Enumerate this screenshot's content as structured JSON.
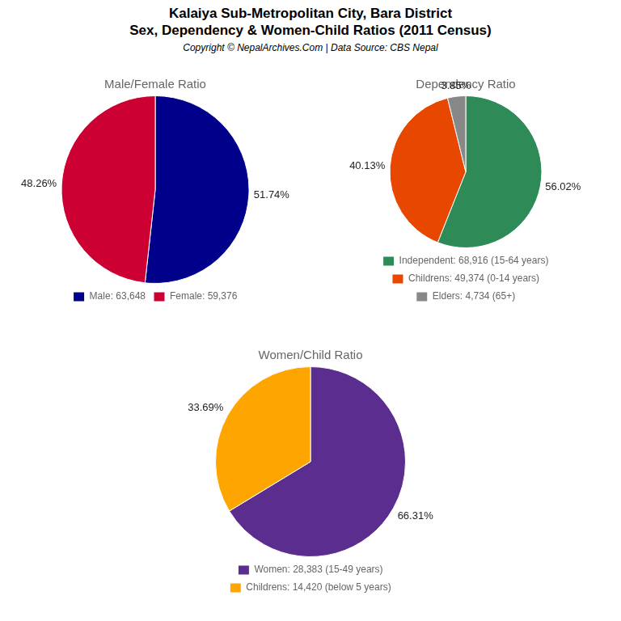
{
  "title": "Kalaiya Sub-Metropolitan City, Bara District",
  "subtitle": "Sex, Dependency & Women-Child Ratios (2011 Census)",
  "annotations": [
    "Copyright © NepalArchives.Com | Data Source: CBS Nepal"
  ],
  "chart_data": [
    {
      "type": "pie",
      "title": "Male/Female Ratio",
      "categories": [
        "Male: 63,648",
        "Female: 59,376"
      ],
      "values": [
        51.74,
        48.26
      ],
      "value_labels": [
        "51.74%",
        "48.26%"
      ],
      "colors": [
        "#00008B",
        "#CC0033"
      ],
      "data_labels": true,
      "legend": "bottom"
    },
    {
      "type": "pie",
      "title": "Dependency Ratio",
      "categories": [
        "Independent: 68,916 (15-64 years)",
        "Childrens: 49,374 (0-14 years)",
        "Elders: 4,734 (65+)"
      ],
      "values": [
        56.02,
        40.13,
        3.85
      ],
      "value_labels": [
        "56.02%",
        "40.13%",
        "3.85%"
      ],
      "colors": [
        "#2E8B57",
        "#E84700",
        "#888888"
      ],
      "data_labels": true,
      "legend": "bottom"
    },
    {
      "type": "pie",
      "title": "Women/Child Ratio",
      "categories": [
        "Women: 28,383 (15-49 years)",
        "Childrens: 14,420 (below 5 years)"
      ],
      "values": [
        66.31,
        33.69
      ],
      "value_labels": [
        "66.31%",
        "33.69%"
      ],
      "colors": [
        "#5B2D8E",
        "#FFA500"
      ],
      "data_labels": true,
      "legend": "bottom"
    }
  ]
}
